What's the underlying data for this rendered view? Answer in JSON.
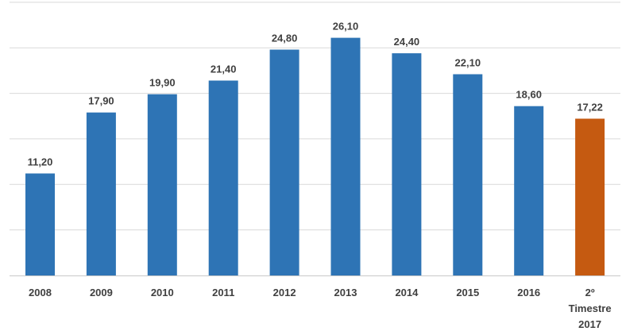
{
  "chart_data": {
    "type": "bar",
    "categories": [
      "2008",
      "2009",
      "2010",
      "2011",
      "2012",
      "2013",
      "2014",
      "2015",
      "2016",
      "2º Timestre 2017"
    ],
    "category_lines": [
      [
        "2008"
      ],
      [
        "2009"
      ],
      [
        "2010"
      ],
      [
        "2011"
      ],
      [
        "2012"
      ],
      [
        "2013"
      ],
      [
        "2014"
      ],
      [
        "2015"
      ],
      [
        "2016"
      ],
      [
        "2º",
        "Timestre",
        "2017"
      ]
    ],
    "values": [
      11.2,
      17.9,
      19.9,
      21.4,
      24.8,
      26.1,
      24.4,
      22.1,
      18.6,
      17.22
    ],
    "value_labels": [
      "11,20",
      "17,90",
      "19,90",
      "21,40",
      "24,80",
      "26,10",
      "24,40",
      "22,10",
      "18,60",
      "17,22"
    ],
    "title": "",
    "xlabel": "",
    "ylabel": "",
    "ylim": [
      0,
      30
    ],
    "grid": true,
    "legend": "none",
    "colors": {
      "default_bar": "#2e74b5",
      "highlight_bar": "#c55a11"
    },
    "highlight_index": 9
  }
}
